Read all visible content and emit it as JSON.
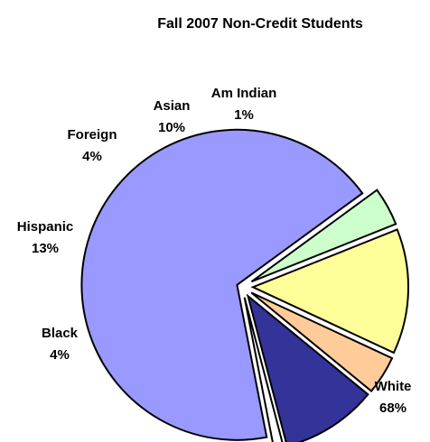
{
  "chart_data": {
    "type": "pie",
    "title": "Fall 2007 Non-Credit Students",
    "slices": [
      {
        "label": "White",
        "value": 68,
        "value_label": "68%",
        "color": "#9999ff"
      },
      {
        "label": "Black",
        "value": 4,
        "value_label": "4%",
        "color": "#ccffcc"
      },
      {
        "label": "Hispanic",
        "value": 13,
        "value_label": "13%",
        "color": "#ffff99"
      },
      {
        "label": "Foreign",
        "value": 4,
        "value_label": "4%",
        "color": "#ffcc99"
      },
      {
        "label": "Asian",
        "value": 10,
        "value_label": "10%",
        "color": "#333399"
      },
      {
        "label": "Am Indian",
        "value": 1,
        "value_label": "1%",
        "color": "#ffffff"
      }
    ],
    "legend": "none"
  }
}
